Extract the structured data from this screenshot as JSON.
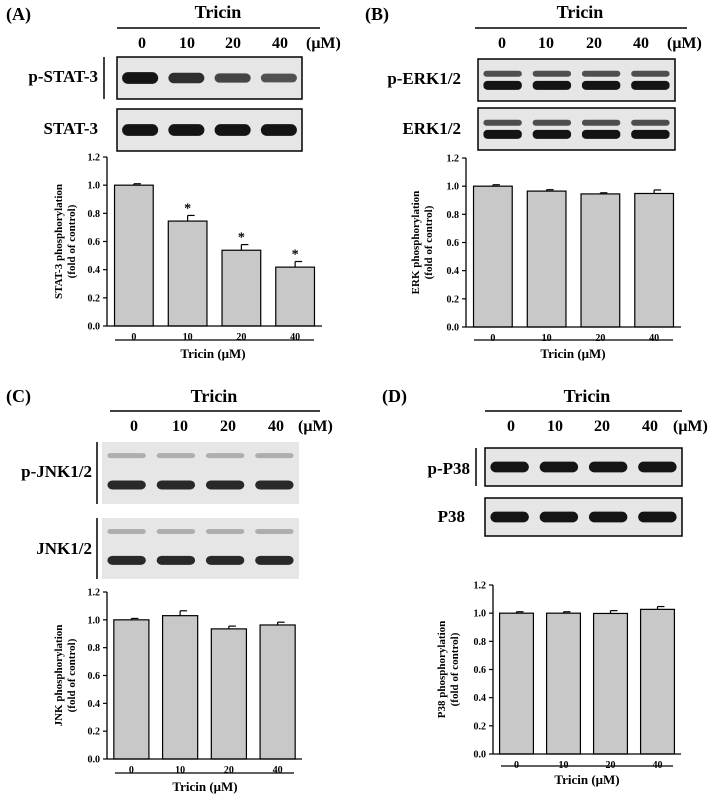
{
  "colors": {
    "bar": "#c8c8c8",
    "ink": "#000000",
    "blot_bg": "#e6e6e6",
    "band": "#141414"
  },
  "panels": [
    {
      "label": "(A)",
      "blot_header": "Tricin",
      "blot_doses": [
        "0",
        "10",
        "20",
        "40"
      ],
      "blot_unit": "(μM)",
      "blots": [
        {
          "label": "p-STAT-3",
          "band_intensity": [
            1.0,
            0.74,
            0.54,
            0.42
          ]
        },
        {
          "label": "STAT-3",
          "band_intensity": [
            1.0,
            1.0,
            1.0,
            1.0
          ]
        }
      ],
      "chart_data": {
        "type": "bar",
        "categories": [
          "0",
          "10",
          "20",
          "40"
        ],
        "values": [
          1.0,
          0.745,
          0.538,
          0.418
        ],
        "errors": [
          0.01,
          0.04,
          0.04,
          0.04
        ],
        "significance": [
          "",
          "*",
          "*",
          "*"
        ],
        "ylabel_lines": [
          "STAT-3 phosphorylation",
          "(fold of control)"
        ],
        "xlabel": "Tricin (μM)",
        "ylim": [
          0,
          1.2
        ],
        "yticks": [
          "0.0",
          "0.2",
          "0.4",
          "0.6",
          "0.8",
          "1.0",
          "1.2"
        ]
      }
    },
    {
      "label": "(B)",
      "blot_header": "Tricin",
      "blot_doses": [
        "0",
        "10",
        "20",
        "40"
      ],
      "blot_unit": "(μM)",
      "blots": [
        {
          "label": "p-ERK1/2",
          "band_intensity": [
            1.0,
            1.0,
            1.0,
            1.0
          ]
        },
        {
          "label": "ERK1/2",
          "band_intensity": [
            1.0,
            1.0,
            1.0,
            1.0
          ]
        }
      ],
      "chart_data": {
        "type": "bar",
        "categories": [
          "0",
          "10",
          "20",
          "40"
        ],
        "values": [
          1.0,
          0.965,
          0.945,
          0.948
        ],
        "errors": [
          0.01,
          0.01,
          0.008,
          0.025
        ],
        "significance": [
          "",
          "",
          "",
          ""
        ],
        "ylabel_lines": [
          "ERK phosphorylation",
          "(fold of control)"
        ],
        "xlabel": "Tricin (μM)",
        "ylim": [
          0,
          1.2
        ],
        "yticks": [
          "0.0",
          "0.2",
          "0.4",
          "0.6",
          "0.8",
          "1.0",
          "1.2"
        ]
      }
    },
    {
      "label": "(C)",
      "blot_header": "Tricin",
      "blot_doses": [
        "0",
        "10",
        "20",
        "40"
      ],
      "blot_unit": "(μM)",
      "blots": [
        {
          "label": "p-JNK1/2",
          "band_intensity": [
            1.0,
            1.0,
            1.0,
            1.0
          ]
        },
        {
          "label": "JNK1/2",
          "band_intensity": [
            1.0,
            1.0,
            1.0,
            1.0
          ]
        }
      ],
      "chart_data": {
        "type": "bar",
        "categories": [
          "0",
          "10",
          "20",
          "40"
        ],
        "values": [
          1.0,
          1.03,
          0.935,
          0.963
        ],
        "errors": [
          0.01,
          0.035,
          0.02,
          0.02
        ],
        "significance": [
          "",
          "",
          "",
          ""
        ],
        "ylabel_lines": [
          "JNK phosphorylation",
          "(fold of control)"
        ],
        "xlabel": "Tricin (μM)",
        "ylim": [
          0,
          1.2
        ],
        "yticks": [
          "0.0",
          "0.2",
          "0.4",
          "0.6",
          "0.8",
          "1.0",
          "1.2"
        ]
      }
    },
    {
      "label": "(D)",
      "blot_header": "Tricin",
      "blot_doses": [
        "0",
        "10",
        "20",
        "40"
      ],
      "blot_unit": "(μM)",
      "blots": [
        {
          "label": "p-P38",
          "band_intensity": [
            1.0,
            1.0,
            1.0,
            1.0
          ]
        },
        {
          "label": "P38",
          "band_intensity": [
            1.0,
            1.0,
            1.0,
            1.0
          ]
        }
      ],
      "chart_data": {
        "type": "bar",
        "categories": [
          "0",
          "10",
          "20",
          "40"
        ],
        "values": [
          1.0,
          1.0,
          0.998,
          1.027
        ],
        "errors": [
          0.01,
          0.01,
          0.02,
          0.02
        ],
        "significance": [
          "",
          "",
          "",
          ""
        ],
        "ylabel_lines": [
          "P38 phosphorylation",
          "(fold of control)"
        ],
        "xlabel": "Tricin (μM)",
        "ylim": [
          0,
          1.2
        ],
        "yticks": [
          "0.0",
          "0.2",
          "0.4",
          "0.6",
          "0.8",
          "1.0",
          "1.2"
        ]
      }
    }
  ]
}
